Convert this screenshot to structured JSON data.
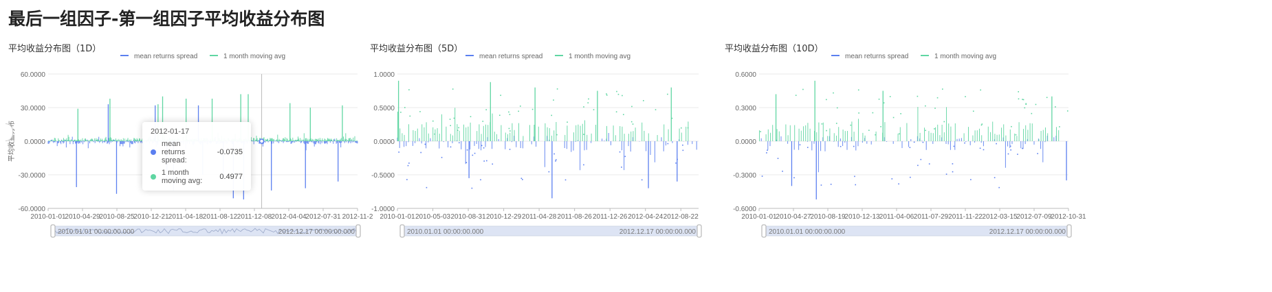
{
  "page": {
    "title": "最后一组因子-第一组因子平均收益分布图"
  },
  "colors": {
    "spread": "#5b7ff0",
    "avg": "#5fd6a2",
    "grid": "#e8e8e8",
    "axis": "#999999",
    "zoom_fill": "#dde4f4"
  },
  "tooltip": {
    "date": "2012-01-17",
    "rows": [
      {
        "name": "mean returns spread:",
        "value": "-0.0735",
        "color": "#5b7ff0"
      },
      {
        "name": "1 month moving avg:",
        "value": "0.4977",
        "color": "#5fd6a2"
      }
    ]
  },
  "chart_data": [
    {
      "type": "line",
      "title": "平均收益分布图（1D）",
      "ylabel": "平均收益分布",
      "ylim": [
        -60,
        60
      ],
      "y_ticks": [
        "60.0000",
        "30.0000",
        "0.0000",
        "-30.0000",
        "-60.0000"
      ],
      "x_ticks": [
        "2010-01-01",
        "2010-04-29",
        "2010-08-25",
        "2010-12-21",
        "2011-04-18",
        "2011-08-12",
        "2011-12-08",
        "2012-04-04",
        "2012-07-31",
        "2012-11-2"
      ],
      "x_range": [
        "2010-01-01",
        "2012-12-17"
      ],
      "grid": true,
      "legend_position": "top-center",
      "legend": [
        "mean returns spread",
        "1 month moving avg"
      ],
      "series": [
        {
          "name": "mean returns spread",
          "spikes": [
            [
              "2010-04-10",
              -41
            ],
            [
              "2010-08-28",
              -47
            ],
            [
              "2011-02-20",
              -33
            ],
            [
              "2011-03-15",
              -44
            ],
            [
              "2011-06-25",
              -30
            ],
            [
              "2011-09-05",
              -33
            ],
            [
              "2011-10-10",
              -51
            ],
            [
              "2011-11-15",
              -52
            ],
            [
              "2012-02-20",
              -44
            ],
            [
              "2012-06-18",
              -42
            ],
            [
              "2012-10-10",
              -36
            ],
            [
              "2010-07-30",
              33
            ],
            [
              "2011-01-10",
              32
            ],
            [
              "2011-06-10",
              32
            ]
          ]
        },
        {
          "name": "1 month moving avg",
          "spikes": [
            [
              "2010-04-15",
              29
            ],
            [
              "2010-08-05",
              38
            ],
            [
              "2011-01-20",
              33
            ],
            [
              "2011-02-05",
              40
            ],
            [
              "2011-04-28",
              38
            ],
            [
              "2011-07-28",
              38
            ],
            [
              "2011-11-05",
              42
            ],
            [
              "2011-12-01",
              42
            ],
            [
              "2012-04-25",
              34
            ],
            [
              "2012-07-05",
              30
            ],
            [
              "2012-10-25",
              32
            ]
          ]
        }
      ],
      "zoom": {
        "start": "2010.01.01 00:00:00.000",
        "end": "2012.12.17 00:00:00.000"
      },
      "crosshair_date": "2012-01-17"
    },
    {
      "type": "line",
      "title": "平均收益分布图（5D）",
      "ylim": [
        -1,
        1
      ],
      "y_ticks": [
        "1.0000",
        "0.5000",
        "0.0000",
        "-0.5000",
        "-1.0000"
      ],
      "x_ticks": [
        "2010-01-01",
        "2010-05-03",
        "2010-08-31",
        "2010-12-29",
        "2011-04-28",
        "2011-08-26",
        "2011-12-26",
        "2012-04-24",
        "2012-08-22"
      ],
      "x_range": [
        "2010-01-01",
        "2012-12-17"
      ],
      "grid": true,
      "legend_position": "top-center",
      "legend": [
        "mean returns spread",
        "1 month moving avg"
      ],
      "series": [
        {
          "name": "mean returns spread",
          "spikes": [
            [
              "2011-07-10",
              -0.85
            ],
            [
              "2012-06-20",
              -0.7
            ],
            [
              "2010-09-15",
              -0.55
            ],
            [
              "2012-10-01",
              -0.6
            ]
          ]
        },
        {
          "name": "1 month moving avg",
          "spikes": [
            [
              "2010-01-05",
              0.9
            ],
            [
              "2011-05-10",
              0.8
            ],
            [
              "2011-12-20",
              0.75
            ],
            [
              "2012-09-10",
              0.8
            ],
            [
              "2010-12-01",
              0.88
            ]
          ]
        }
      ],
      "zoom": {
        "start": "2010.01.01 00:00:00.000",
        "end": "2012.12.17 00:00:00.000"
      }
    },
    {
      "type": "line",
      "title": "平均收益分布图（10D）",
      "ylim": [
        -0.6,
        0.6
      ],
      "y_ticks": [
        "0.6000",
        "0.3000",
        "0.0000",
        "-0.3000",
        "-0.6000"
      ],
      "x_ticks": [
        "2010-01-01",
        "2010-04-27",
        "2010-08-19",
        "2010-12-13",
        "2011-04-06",
        "2011-07-29",
        "2011-11-22",
        "2012-03-15",
        "2012-07-09",
        "2012-10-31"
      ],
      "x_range": [
        "2010-01-01",
        "2012-12-17"
      ],
      "grid": true,
      "legend_position": "top-center",
      "legend": [
        "mean returns spread",
        "1 month moving avg"
      ],
      "series": [
        {
          "name": "mean returns spread",
          "spikes": [
            [
              "2010-07-20",
              -0.52
            ],
            [
              "2010-04-25",
              -0.4
            ],
            [
              "2012-12-10",
              -0.35
            ]
          ]
        },
        {
          "name": "1 month moving avg",
          "spikes": [
            [
              "2010-07-15",
              0.54
            ],
            [
              "2011-03-10",
              0.45
            ],
            [
              "2012-10-20",
              0.4
            ],
            [
              "2010-03-01",
              0.42
            ]
          ]
        }
      ],
      "zoom": {
        "start": "2010.01.01 00:00:00.000",
        "end": "2012.12.17 00:00:00.000"
      }
    }
  ]
}
